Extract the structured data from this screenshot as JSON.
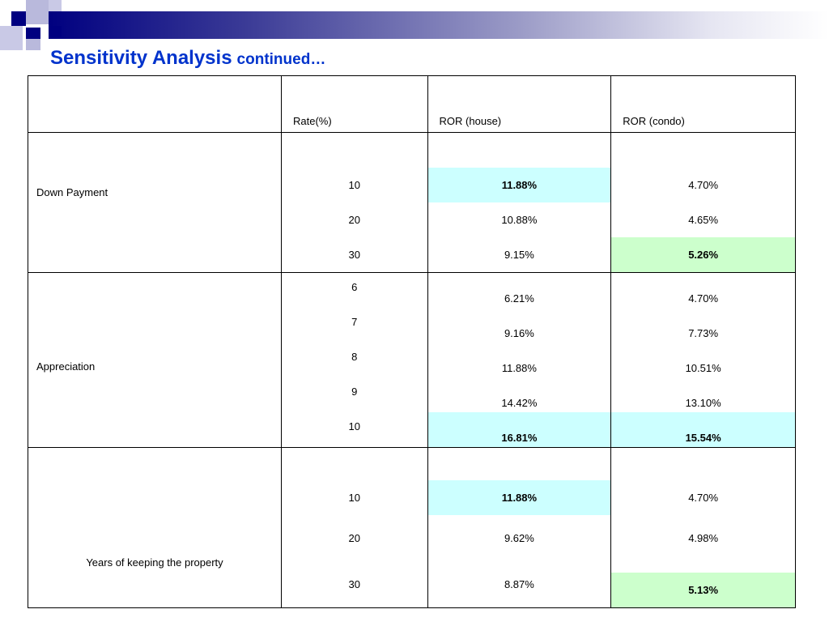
{
  "slide": {
    "title_main": "Sensitivity Analysis",
    "title_sub": "continued…"
  },
  "table": {
    "headers": [
      "",
      "Rate(%)",
      "ROR (house)",
      "ROR (condo)"
    ],
    "down_payment": {
      "label": "Down Payment",
      "rates": [
        "10",
        "20",
        "30"
      ],
      "house": [
        "11.88%",
        "10.88%",
        "9.15%"
      ],
      "condo": [
        "4.70%",
        "4.65%",
        "5.26%"
      ]
    },
    "appreciation": {
      "label": "Appreciation",
      "rates": [
        "6",
        "7",
        "8",
        "9",
        "10"
      ],
      "house": [
        "6.21%",
        "9.16%",
        "11.88%",
        "14.42%",
        "16.81%"
      ],
      "condo": [
        "4.70%",
        "7.73%",
        "10.51%",
        "13.10%",
        "15.54%"
      ]
    },
    "years": {
      "label": "Years of keeping the property",
      "rates": [
        "10",
        "20",
        "30"
      ],
      "house": [
        "11.88%",
        "9.62%",
        "8.87%"
      ],
      "condo": [
        "4.70%",
        "4.98%",
        "5.13%"
      ]
    }
  },
  "colors": {
    "title": "#0033cc",
    "highlight_cyan": "#ccffff",
    "highlight_green": "#ccffcc",
    "header_navy": "#000080"
  }
}
